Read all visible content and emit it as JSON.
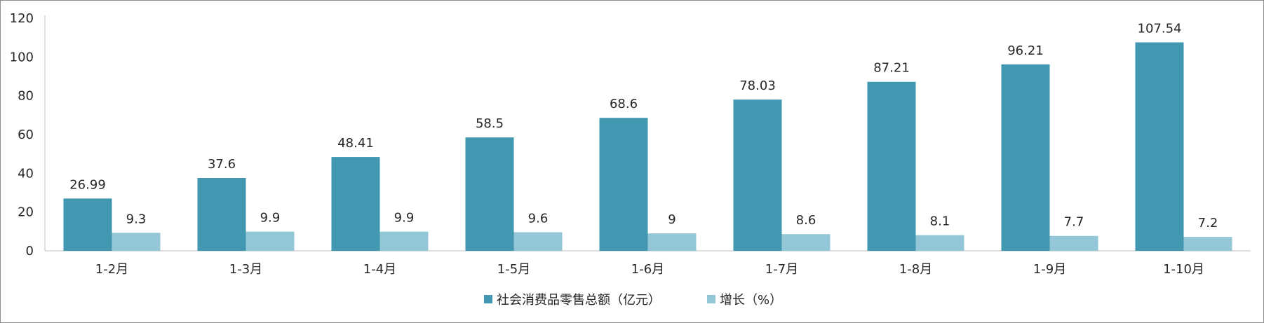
{
  "chart_data": {
    "type": "bar",
    "categories": [
      "1-2月",
      "1-3月",
      "1-4月",
      "1-5月",
      "1-6月",
      "1-7月",
      "1-8月",
      "1-9月",
      "1-10月"
    ],
    "series": [
      {
        "name": "社会消费品零售总额（亿元）",
        "color": "#4298b0",
        "values": [
          26.99,
          37.6,
          48.41,
          58.5,
          68.6,
          78.03,
          87.21,
          96.21,
          107.54
        ]
      },
      {
        "name": "增长（%）",
        "color": "#93c6d7",
        "values": [
          9.3,
          9.9,
          9.9,
          9.6,
          9,
          8.6,
          8.1,
          7.7,
          7.2
        ]
      }
    ],
    "ylim": [
      0,
      120
    ],
    "yticks": [
      0,
      20,
      40,
      60,
      80,
      100,
      120
    ],
    "grid": false,
    "legend_position": "bottom",
    "data_labels": true
  }
}
